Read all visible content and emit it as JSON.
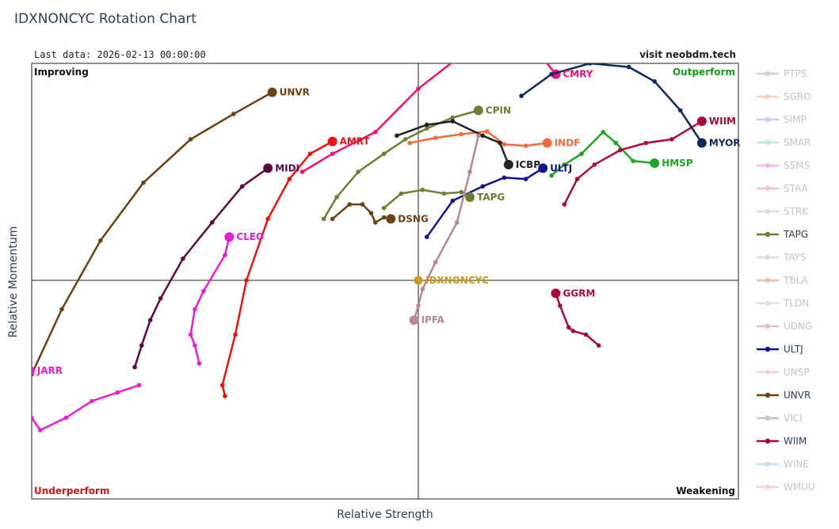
{
  "title": "IDXNONCYC Rotation Chart",
  "last_data": "Last data: 2026-02-13 00:00:00",
  "visit": "visit neobdm.tech",
  "quadrants": {
    "improving": "Improving",
    "outperform": "Outperform",
    "underperform": "Underperform",
    "weakening": "Weakening"
  },
  "colors": {
    "improving": "#111111",
    "outperform": "#1a9a1a",
    "underperform": "#e01010",
    "weakening": "#111111"
  },
  "chart_data": {
    "type": "scatter",
    "xlabel": "Relative Strength",
    "ylabel": "Relative Momentum",
    "xlim": [
      95.5,
      104.7
    ],
    "ylim": [
      95.5,
      103.0
    ],
    "center": [
      100,
      100
    ],
    "grid": false,
    "legend_placement": "right",
    "benchmark": {
      "name": "IDXNONCYC",
      "x": 100.0,
      "y": 100.0,
      "color": "#c89a1e"
    },
    "series": [
      {
        "name": "UNVR",
        "color": "#6b4214",
        "x": [
          95.5,
          95.85,
          96.3,
          96.8,
          97.35,
          97.85,
          98.3
        ],
        "y": [
          98.7,
          99.6,
          100.55,
          101.35,
          101.95,
          102.3,
          102.6
        ]
      },
      {
        "name": "MIDI",
        "color": "#5e0a3e",
        "x": [
          96.7,
          96.78,
          96.88,
          97.0,
          97.26,
          97.6,
          97.95,
          98.25
        ],
        "y": [
          98.8,
          99.1,
          99.45,
          99.75,
          100.3,
          100.8,
          101.3,
          101.55
        ]
      },
      {
        "name": "CLEO",
        "color": "#e81ed2",
        "x": [
          97.45,
          97.4,
          97.35,
          97.4,
          97.5,
          97.75,
          97.8
        ],
        "y": [
          98.85,
          99.1,
          99.25,
          99.6,
          99.85,
          100.35,
          100.6
        ]
      },
      {
        "name": "JARR",
        "color": "#e81ed2",
        "x": [
          96.75,
          96.5,
          96.2,
          95.9,
          95.6,
          95.5,
          95.45,
          95.48
        ],
        "y": [
          98.55,
          98.45,
          98.33,
          98.1,
          97.93,
          98.1,
          98.35,
          98.75
        ]
      },
      {
        "name": "AMRT",
        "color": "#ee1111",
        "x": [
          97.75,
          97.72,
          97.87,
          98.0,
          98.25,
          98.5,
          98.74,
          99.0
        ],
        "y": [
          98.4,
          98.55,
          99.25,
          100.0,
          100.85,
          101.4,
          101.75,
          101.92
        ]
      },
      {
        "name": "CMRY",
        "color": "#ee1177",
        "x": [
          98.65,
          99.0,
          99.5,
          100.0,
          100.65,
          101.05,
          101.4,
          101.6
        ],
        "y": [
          101.5,
          101.75,
          102.05,
          102.65,
          103.25,
          103.3,
          103.15,
          102.85
        ]
      },
      {
        "name": "CPIN",
        "color": "#6b7f32",
        "x": [
          98.9,
          99.05,
          99.3,
          99.6,
          99.85,
          100.1,
          100.4,
          100.7
        ],
        "y": [
          100.85,
          101.15,
          101.5,
          101.75,
          101.95,
          102.1,
          102.25,
          102.35
        ]
      },
      {
        "name": "INDF",
        "color": "#ee6c3c",
        "x": [
          99.9,
          100.2,
          100.5,
          100.8,
          101.0,
          101.25,
          101.5
        ],
        "y": [
          101.9,
          101.97,
          102.02,
          102.06,
          101.88,
          101.86,
          101.9
        ]
      },
      {
        "name": "ICBP",
        "color": "#222222",
        "x": [
          99.75,
          100.1,
          100.4,
          100.75,
          100.95,
          101.05
        ],
        "y": [
          102.0,
          102.15,
          102.2,
          102.0,
          101.9,
          101.6
        ]
      },
      {
        "name": "ULTJ",
        "color": "#14148c",
        "x": [
          100.1,
          100.4,
          100.75,
          101.0,
          101.25,
          101.45
        ],
        "y": [
          100.6,
          101.1,
          101.3,
          101.42,
          101.4,
          101.55
        ]
      },
      {
        "name": "TAPG",
        "color": "#6b7f32",
        "x": [
          99.6,
          99.8,
          100.05,
          100.3,
          100.5,
          100.6
        ],
        "y": [
          101.0,
          101.2,
          101.25,
          101.2,
          101.22,
          101.15
        ]
      },
      {
        "name": "DSNG",
        "color": "#6b4214",
        "x": [
          99.0,
          99.2,
          99.35,
          99.45,
          99.5,
          99.6,
          99.68
        ],
        "y": [
          100.85,
          101.05,
          101.05,
          100.93,
          100.8,
          100.87,
          100.85
        ]
      },
      {
        "name": "IPFA",
        "color": "#b88890",
        "x": [
          100.7,
          100.6,
          100.45,
          100.2,
          100.05,
          100.0,
          99.95
        ],
        "y": [
          102.0,
          101.5,
          100.8,
          100.25,
          99.88,
          99.65,
          99.45
        ]
      },
      {
        "name": "GGRM",
        "color": "#aa0a3a",
        "x": [
          102.1,
          101.95,
          101.8,
          101.75,
          101.65,
          101.6
        ],
        "y": [
          99.1,
          99.25,
          99.3,
          99.35,
          99.65,
          99.82
        ]
      },
      {
        "name": "HMSP",
        "color": "#22a222",
        "x": [
          101.55,
          101.7,
          101.9,
          102.15,
          102.3,
          102.5,
          102.75
        ],
        "y": [
          101.45,
          101.6,
          101.75,
          102.05,
          101.9,
          101.65,
          101.62
        ]
      },
      {
        "name": "WIIM",
        "color": "#aa0a3a",
        "x": [
          101.7,
          101.85,
          102.05,
          102.35,
          102.65,
          102.95,
          103.3
        ],
        "y": [
          101.05,
          101.4,
          101.6,
          101.8,
          101.9,
          101.95,
          102.2
        ]
      },
      {
        "name": "MYOR",
        "color": "#0f2a5c",
        "x": [
          101.2,
          101.55,
          102.0,
          102.45,
          102.75,
          103.05,
          103.3
        ],
        "y": [
          102.55,
          102.85,
          103.0,
          102.95,
          102.75,
          102.35,
          101.9
        ]
      }
    ],
    "legend": [
      {
        "name": "PTPS",
        "color": "#c79bc7",
        "faded": true
      },
      {
        "name": "SGRO",
        "color": "#f2a98a",
        "faded": true
      },
      {
        "name": "SIMP",
        "color": "#a69af2",
        "faded": true
      },
      {
        "name": "SMAR",
        "color": "#86d4c8",
        "faded": true
      },
      {
        "name": "SSMS",
        "color": "#f07ae0",
        "faded": true
      },
      {
        "name": "STAA",
        "color": "#f08ab0",
        "faded": true
      },
      {
        "name": "STRK",
        "color": "#d2b8bf",
        "faded": true
      },
      {
        "name": "TAPG",
        "color": "#6b7f32",
        "faded": false
      },
      {
        "name": "TAYS",
        "color": "#b8c0d2",
        "faded": true
      },
      {
        "name": "TBLA",
        "color": "#e28a70",
        "faded": true
      },
      {
        "name": "TLDN",
        "color": "#d8b8f0",
        "faded": true
      },
      {
        "name": "UDNG",
        "color": "#c08aa8",
        "faded": true
      },
      {
        "name": "ULTJ",
        "color": "#14148c",
        "faded": false
      },
      {
        "name": "UNSP",
        "color": "#f0a8e0",
        "faded": true
      },
      {
        "name": "UNVR",
        "color": "#6b4214",
        "faded": false
      },
      {
        "name": "VICI",
        "color": "#8a94aa",
        "faded": true
      },
      {
        "name": "WIIM",
        "color": "#aa0a3a",
        "faded": false
      },
      {
        "name": "WINE",
        "color": "#8ac4f0",
        "faded": true
      },
      {
        "name": "WMUU",
        "color": "#f0a8c8",
        "faded": true
      }
    ]
  }
}
